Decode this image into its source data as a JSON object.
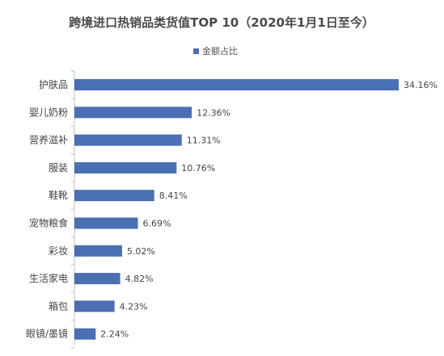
{
  "chart_data": {
    "type": "bar",
    "orientation": "horizontal",
    "title": "跨境进口热销品类货值TOP 10（2020年1月1日至今）",
    "legend": {
      "position": "top",
      "entries": [
        "金额占比"
      ]
    },
    "categories": [
      "护肤品",
      "婴儿奶粉",
      "营养滋补",
      "服装",
      "鞋靴",
      "宠物粮食",
      "彩妆",
      "生活家电",
      "箱包",
      "眼镜/墨镜"
    ],
    "series": [
      {
        "name": "金额占比",
        "values": [
          34.16,
          12.36,
          11.31,
          10.76,
          8.41,
          6.69,
          5.02,
          4.82,
          4.23,
          2.24
        ],
        "labels": [
          "34.16%",
          "12.36%",
          "11.31%",
          "10.76%",
          "8.41%",
          "6.69%",
          "5.02%",
          "4.82%",
          "4.23%",
          "2.24%"
        ]
      }
    ],
    "xlim": [
      0,
      34.16
    ],
    "grid": false,
    "colors": {
      "bar": "#4a6fb3"
    }
  }
}
